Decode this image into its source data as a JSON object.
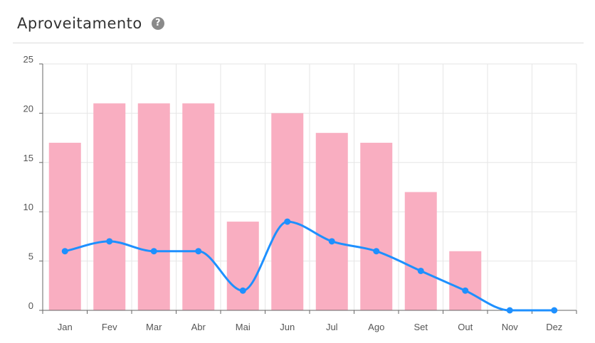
{
  "header": {
    "title": "Aproveitamento",
    "help_icon": "question-circle-icon"
  },
  "chart_data": {
    "type": "bar",
    "categories": [
      "Jan",
      "Fev",
      "Mar",
      "Abr",
      "Mai",
      "Jun",
      "Jul",
      "Ago",
      "Set",
      "Out",
      "Nov",
      "Dez"
    ],
    "series": [
      {
        "type": "bar",
        "values": [
          17,
          21,
          21,
          21,
          9,
          20,
          18,
          17,
          12,
          6,
          0,
          0
        ],
        "color": "#f9aec1"
      },
      {
        "type": "line",
        "smooth": true,
        "values": [
          6,
          7,
          6,
          6,
          2,
          9,
          7,
          6,
          4,
          2,
          0,
          0
        ],
        "color": "#1e90ff"
      }
    ],
    "title": "",
    "xlabel": "",
    "ylabel": "",
    "ylim": [
      0,
      25
    ],
    "yticks": [
      0,
      5,
      10,
      15,
      20,
      25
    ],
    "grid": true,
    "legend": "none"
  }
}
